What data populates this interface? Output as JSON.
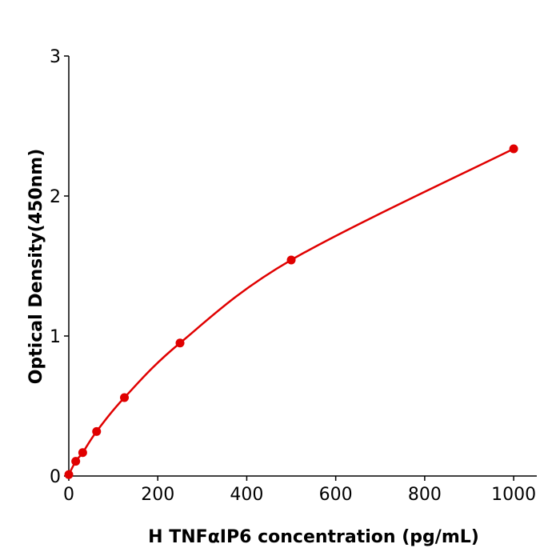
{
  "chart_data": {
    "type": "line",
    "title": "",
    "xlabel": "H  TNFαIP6 concentration (pg/mL)",
    "ylabel": "Optical Density(450nm)",
    "xlim": [
      0,
      1052
    ],
    "ylim": [
      0,
      3
    ],
    "xticks": [
      0,
      200,
      400,
      600,
      800,
      1000
    ],
    "yticks": [
      0,
      1,
      2,
      3
    ],
    "grid": false,
    "color": "#e00000",
    "series": [
      {
        "x": [
          0,
          15.6,
          31.25,
          62.5,
          125,
          250,
          500,
          1000
        ],
        "y": [
          0.01,
          0.105,
          0.167,
          0.318,
          0.56,
          0.95,
          1.543,
          2.337
        ]
      }
    ]
  }
}
